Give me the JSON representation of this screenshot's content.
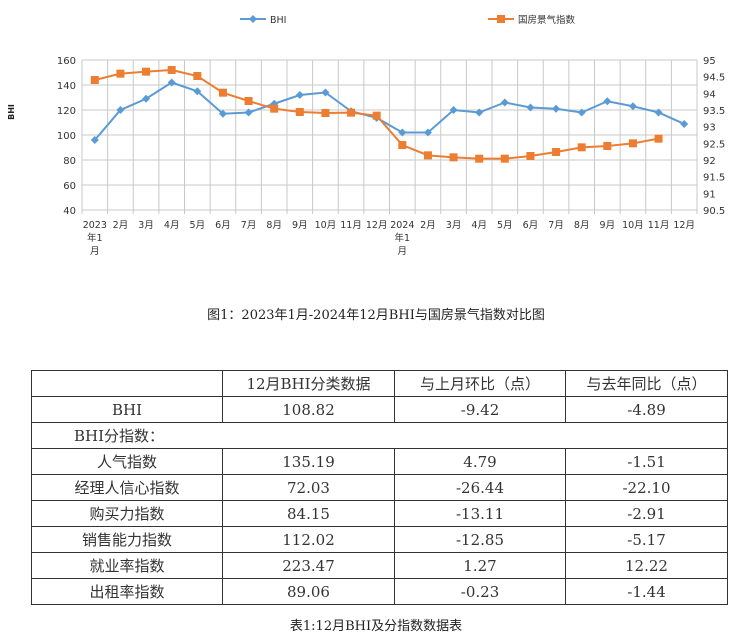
{
  "chart_data": {
    "type": "line",
    "categories": [
      "2023年1月",
      "2月",
      "3月",
      "4月",
      "5月",
      "6月",
      "7月",
      "8月",
      "9月",
      "10月",
      "11月",
      "12月",
      "2024年1月",
      "2月",
      "3月",
      "4月",
      "5月",
      "6月",
      "7月",
      "8月",
      "9月",
      "10月",
      "11月",
      "12月"
    ],
    "series": [
      {
        "name": "BHI",
        "axis": "left",
        "color": "#5B9BD5",
        "marker": "diamond",
        "values": [
          96,
          120,
          129,
          142,
          135,
          117,
          118,
          125,
          132,
          134,
          119,
          113.71,
          102,
          102,
          120,
          118,
          126,
          122,
          121,
          118,
          127,
          123,
          118,
          108.82
        ]
      },
      {
        "name": "国房景气指数",
        "axis": "right",
        "color": "#ED7D31",
        "marker": "square",
        "values": [
          94.4,
          94.59,
          94.65,
          94.7,
          94.52,
          94.02,
          93.77,
          93.54,
          93.44,
          93.41,
          93.42,
          93.33,
          92.45,
          92.14,
          92.08,
          92.04,
          92.04,
          92.12,
          92.24,
          92.38,
          92.42,
          92.5,
          92.64,
          null
        ]
      }
    ],
    "ylabel": "BHI",
    "ylim": [
      40,
      160
    ],
    "yticks": [
      40,
      60,
      80,
      100,
      120,
      140,
      160
    ],
    "y2lim": [
      90.5,
      95
    ],
    "y2ticks": [
      "90.5",
      "91",
      "91.5",
      "92",
      "92.5",
      "93",
      "93.5",
      "94",
      "94.5",
      "95"
    ],
    "grid": true,
    "legend": "top"
  },
  "figure_caption": "图1：2023年1月-2024年12月BHI与国房景气指数对比图",
  "table": {
    "headers": [
      "",
      "12月BHI分类数据",
      "与上月环比（点）",
      "与去年同比（点）"
    ],
    "bhi_row": [
      "BHI",
      "108.82",
      "-9.42",
      "-4.89"
    ],
    "sub_label": "BHI分指数：",
    "rows": [
      [
        "人气指数",
        "135.19",
        "4.79",
        "-1.51"
      ],
      [
        "经理人信心指数",
        "72.03",
        "-26.44",
        "-22.10"
      ],
      [
        "购买力指数",
        "84.15",
        "-13.11",
        "-2.91"
      ],
      [
        "销售能力指数",
        "112.02",
        "-12.85",
        "-5.17"
      ],
      [
        "就业率指数",
        "223.47",
        "1.27",
        "12.22"
      ],
      [
        "出租率指数",
        "89.06",
        "-0.23",
        "-1.44"
      ]
    ],
    "caption": "表1:12月BHI及分指数数据表"
  }
}
